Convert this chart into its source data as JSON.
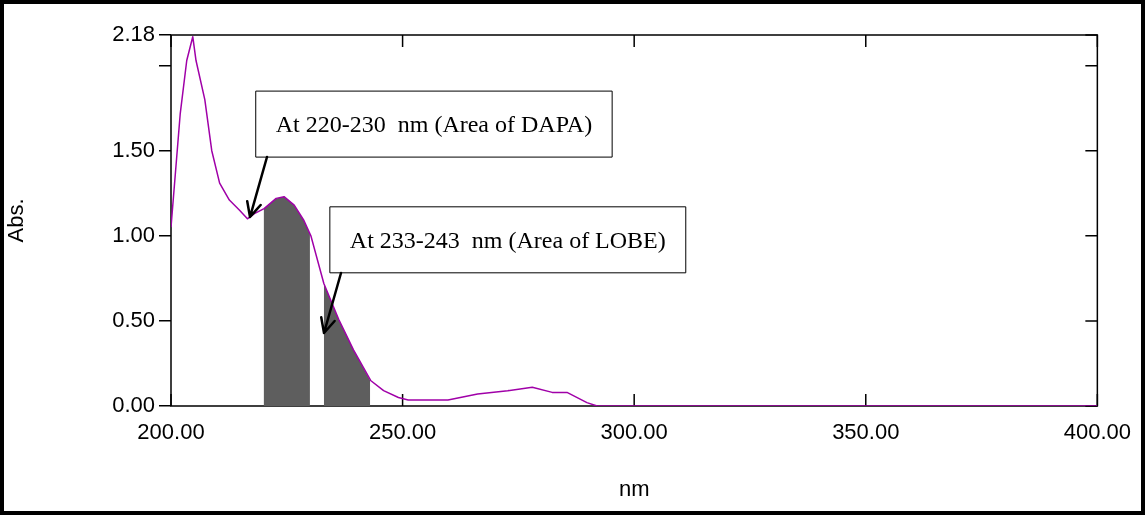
{
  "chart_data": {
    "type": "line",
    "xlabel": "nm",
    "ylabel": "Abs.",
    "xlim": [
      200,
      400
    ],
    "xticks": [
      {
        "value": 200,
        "label": "200.00"
      },
      {
        "value": 250,
        "label": "250.00"
      },
      {
        "value": 300,
        "label": "300.00"
      },
      {
        "value": 350,
        "label": "350.00"
      },
      {
        "value": 400,
        "label": "400.00"
      }
    ],
    "ylim": [
      0,
      2.18
    ],
    "yticks": [
      {
        "value": 0,
        "label": "0.00"
      },
      {
        "value": 0.5,
        "label": "0.50"
      },
      {
        "value": 1,
        "label": "1.00"
      },
      {
        "value": 1.5,
        "label": "1.50"
      },
      {
        "value": 2,
        "label": null
      },
      {
        "value": 2.18,
        "label": "2.18"
      }
    ],
    "grid": false,
    "legend": false,
    "marker": "none",
    "line_style": "solid",
    "series": [
      {
        "color": "#a000a8",
        "x": [
          200,
          202,
          203.4,
          204.7,
          205.4,
          207.3,
          208.8,
          210.5,
          212.6,
          214.8,
          216.5,
          218,
          220.1,
          222.7,
          224.4,
          226.6,
          228.7,
          230.2,
          233,
          236.2,
          239.4,
          243.1,
          245.9,
          249.1,
          251.2,
          259.8,
          266.2,
          272.7,
          278,
          282.3,
          285.5,
          289.8,
          292,
          320,
          360,
          400
        ],
        "values": [
          1.05,
          1.72,
          2.03,
          2.17,
          2.03,
          1.8,
          1.5,
          1.31,
          1.21,
          1.15,
          1.1,
          1.13,
          1.16,
          1.22,
          1.23,
          1.18,
          1.09,
          1.0,
          0.72,
          0.51,
          0.33,
          0.15,
          0.09,
          0.05,
          0.035,
          0.035,
          0.07,
          0.09,
          0.11,
          0.08,
          0.08,
          0.02,
          0,
          0,
          0,
          0
        ]
      },
      {
        "type": "area",
        "color": "#5e5e5e",
        "x": [
          220,
          220.1,
          222.7,
          224.4,
          226.6,
          228.7,
          230
        ],
        "values": [
          1.16,
          1.16,
          1.22,
          1.23,
          1.18,
          1.09,
          1.01
        ]
      },
      {
        "type": "area",
        "color": "#5e5e5e",
        "x": [
          233,
          236.2,
          239.4,
          243
        ],
        "values": [
          0.72,
          0.51,
          0.33,
          0.15
        ]
      }
    ],
    "annotations": [
      {
        "text": "At 220-230  nm (Area of DAPA)",
        "x": 217,
        "y": 1.11
      },
      {
        "text": "At 233-243  nm (Area of LOBE)",
        "x": 233,
        "y": 0.43
      }
    ]
  }
}
